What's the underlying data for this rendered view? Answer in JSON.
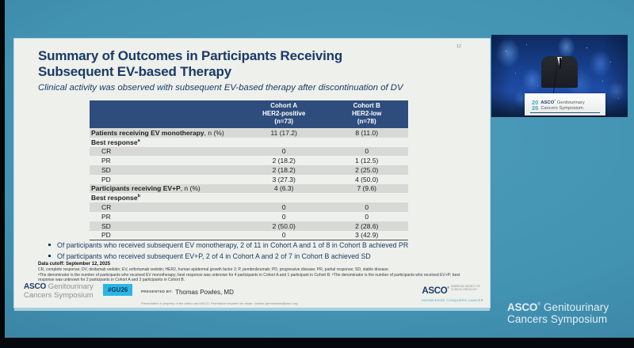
{
  "reg_mark": "®",
  "colors": {
    "background_teal": "#4092b2",
    "table_header_navy": "#2e4d7d",
    "title_navy": "#1b3a66",
    "hashtag_cyan": "#2cb6e3",
    "row_shade_gray": "#d8d9d6",
    "video_blue": "#1f4da6"
  },
  "slide": {
    "number": "12",
    "title_line1": "Summary of Outcomes in Participants Receiving",
    "title_line2": "Subsequent EV-based Therapy",
    "subtitle": "Clinical activity was observed with subsequent EV-based therapy after discontinuation of DV",
    "table": {
      "cohort_a": [
        "Cohort A",
        "HER2-positive",
        "(n=73)"
      ],
      "cohort_b": [
        "Cohort B",
        "HER2-low",
        "(n=78)"
      ],
      "rows": [
        {
          "label": "Patients receiving EV monotherapy",
          "suffix": ", n (%)",
          "bold": true,
          "a": "11 (17.2)",
          "b": "8 (11.0)"
        },
        {
          "label": "Best response",
          "sup": "a",
          "section": true
        },
        {
          "label": "CR",
          "indent": true,
          "a": "0",
          "b": "0"
        },
        {
          "label": "PR",
          "indent": true,
          "a": "2 (18.2)",
          "b": "1 (12.5)"
        },
        {
          "label": "SD",
          "indent": true,
          "a": "2 (18.2)",
          "b": "2 (25.0)"
        },
        {
          "label": "PD",
          "indent": true,
          "a": "3 (27.3)",
          "b": "4 (50.0)"
        },
        {
          "label": "Participants receiving EV+P",
          "suffix": ", n (%)",
          "bold": true,
          "a": "4 (6.3)",
          "b": "7 (9.6)"
        },
        {
          "label": "Best response",
          "sup": "b",
          "section": true
        },
        {
          "label": "CR",
          "indent": true,
          "a": "0",
          "b": "0"
        },
        {
          "label": "PR",
          "indent": true,
          "a": "0",
          "b": "0"
        },
        {
          "label": "SD",
          "indent": true,
          "a": "2 (50.0)",
          "b": "2 (28.6)"
        },
        {
          "label": "PD",
          "indent": true,
          "a": "0",
          "b": "3 (42.9)"
        }
      ]
    },
    "bullets": [
      "Of participants who received subsequent EV monotherapy, 2 of 11 in Cohort A and 1 of 8 in Cohort B achieved PR",
      "Of participants who received subsequent EV+P, 2 of 4 in Cohort A and 2 of 7 in Cohort B achieved SD"
    ],
    "data_cutoff": "Data cutoff: September 12, 2025",
    "footnotes": [
      "CR, complete response; DV, disitamab vedotin; EV, enfortumab vedotin; HER2, human epidermal growth factor 2; P, pembrolizumab; PD, progressive disease; PR, partial response; SD, stable disease.",
      "ᵃThe denominator is the number of participants who received EV monotherapy; best response was unknown for 4 participants in Cohort A and 1 participant in Cohort B. ᵇThe denominator is the number of participants who received EV+P; best response was unknown for 2 participants in Cohort A and 2 participants in Cohort B."
    ],
    "footer": {
      "brand_bold": "ASCO",
      "brand_light": "Genitourinary",
      "brand_line2": "Cancers Symposium",
      "hashtag": "#GU26",
      "presented_by_label": "PRESENTED BY:",
      "presenter_name": "Thomas Powles, MD",
      "disclaimer": "Presentation is property of the author and ASCO. Permission required for reuse; contact permissions@asco.org.",
      "logo_asco": "ASCO",
      "logo_society_line1": "AMERICAN SOCIETY OF",
      "logo_society_line2": "CLINICAL ONCOLOGY",
      "logo_tagline": "KNOWLEDGE CONQUERS CANCER"
    }
  },
  "video": {
    "podium_year_top": "20",
    "podium_year_bottom": "26",
    "podium_brand_bold": "ASCO",
    "podium_brand_rest": " Genitourinary",
    "podium_line2": "Cancers Symposium"
  },
  "stream": {
    "brand_bold": "ASCO",
    "brand_rest": " Genitourinary",
    "brand_line2": "Cancers Symposium"
  }
}
